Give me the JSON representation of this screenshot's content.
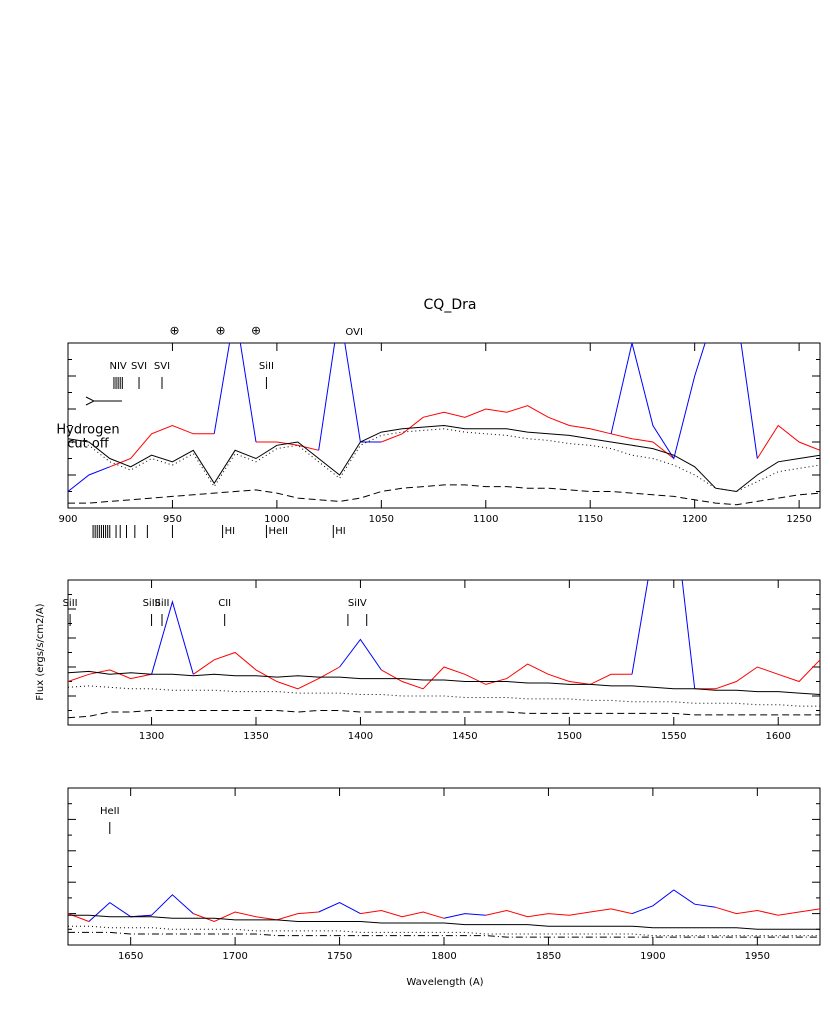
{
  "chart_data": [
    {
      "type": "line",
      "title": "CQ_Dra",
      "xlim": [
        900,
        1260
      ],
      "ylim": [
        0,
        10
      ],
      "xticks": [
        900,
        950,
        1000,
        1050,
        1100,
        1150,
        1200,
        1250
      ],
      "x": [
        900,
        910,
        920,
        930,
        940,
        950,
        960,
        970,
        980,
        990,
        1000,
        1010,
        1020,
        1030,
        1040,
        1050,
        1060,
        1070,
        1080,
        1090,
        1100,
        1110,
        1120,
        1130,
        1140,
        1150,
        1160,
        1170,
        1180,
        1190,
        1200,
        1210,
        1220,
        1230,
        1240,
        1250,
        1260
      ],
      "series": [
        {
          "color": "#ff0000",
          "dash": "solid",
          "values": [
            null,
            null,
            2.5,
            3.0,
            4.5,
            5.0,
            4.5,
            4.5,
            null,
            4.0,
            4.0,
            3.8,
            3.5,
            null,
            null,
            4.0,
            4.5,
            5.5,
            5.8,
            5.5,
            6.0,
            5.8,
            6.2,
            5.5,
            5.0,
            4.8,
            4.5,
            4.2,
            4.0,
            3.0,
            null,
            null,
            null,
            3.0,
            5.0,
            4.0,
            3.5
          ]
        },
        {
          "color": "#0000ff",
          "dash": "solid",
          "values": [
            1.0,
            2.0,
            2.5,
            null,
            null,
            null,
            null,
            4.5,
            12,
            4.0,
            null,
            null,
            3.5,
            12,
            4.0,
            4.0,
            null,
            null,
            null,
            null,
            null,
            null,
            null,
            null,
            null,
            null,
            4.5,
            10,
            5.0,
            3.0,
            8,
            12,
            12,
            3.0,
            null,
            null,
            null
          ]
        },
        {
          "color": "#000000",
          "dash": "solid",
          "values": [
            4.2,
            4.0,
            3.0,
            2.5,
            3.2,
            2.8,
            3.5,
            1.5,
            3.5,
            3.0,
            3.8,
            4.0,
            3.0,
            2.0,
            4.0,
            4.6,
            4.8,
            4.9,
            5.0,
            4.8,
            4.8,
            4.8,
            4.6,
            4.5,
            4.4,
            4.2,
            4.0,
            3.8,
            3.6,
            3.2,
            2.5,
            1.2,
            1.0,
            2.0,
            2.8,
            3.0,
            3.2
          ]
        },
        {
          "color": "#000000",
          "dash": "dotted",
          "values": [
            4.0,
            3.8,
            2.8,
            2.3,
            3.0,
            2.6,
            3.3,
            1.3,
            3.3,
            2.8,
            3.6,
            3.8,
            2.8,
            1.8,
            3.8,
            4.4,
            4.6,
            4.7,
            4.8,
            4.6,
            4.5,
            4.4,
            4.2,
            4.1,
            3.9,
            3.8,
            3.6,
            3.2,
            3.0,
            2.6,
            2.0,
            1.2,
            1.0,
            1.6,
            2.2,
            2.4,
            2.6
          ]
        },
        {
          "color": "#000000",
          "dash": "dashed",
          "values": [
            0.3,
            0.3,
            0.4,
            0.5,
            0.6,
            0.7,
            0.8,
            0.9,
            1.0,
            1.1,
            0.9,
            0.6,
            0.5,
            0.4,
            0.6,
            1.0,
            1.2,
            1.3,
            1.4,
            1.4,
            1.3,
            1.3,
            1.2,
            1.2,
            1.1,
            1.0,
            1.0,
            0.9,
            0.8,
            0.7,
            0.5,
            0.3,
            0.2,
            0.4,
            0.6,
            0.8,
            0.9
          ]
        }
      ],
      "telluric": {
        "symbol": "⊕",
        "x": [
          951,
          973,
          990
        ]
      },
      "top_labels": [
        {
          "text": "OVI",
          "x": 1037
        }
      ],
      "annotations": [
        {
          "text": "NIV",
          "x": [
            922,
            923,
            924,
            925,
            926
          ]
        },
        {
          "text": "SVI",
          "x": [
            934
          ]
        },
        {
          "text": "SVI",
          "x": [
            945
          ]
        },
        {
          "text": "SiII",
          "x": [
            995
          ]
        }
      ],
      "lower_ticks": [
        912,
        913,
        914,
        915,
        916,
        917,
        918,
        919,
        920,
        923,
        925,
        928,
        932,
        938,
        950
      ],
      "lower_labels": [
        {
          "text": "HI",
          "x": 974
        },
        {
          "text": "HeII",
          "x": 995
        },
        {
          "text": "HI",
          "x": 1027
        }
      ],
      "cutoff_text": [
        "Hydrogen",
        "cut off"
      ]
    },
    {
      "type": "line",
      "ylabel": "Flux (ergs/s/cm2/A)",
      "xlim": [
        1260,
        1620
      ],
      "ylim": [
        0,
        10
      ],
      "xticks": [
        1300,
        1350,
        1400,
        1450,
        1500,
        1550,
        1600
      ],
      "x": [
        1260,
        1270,
        1280,
        1290,
        1300,
        1310,
        1320,
        1330,
        1340,
        1350,
        1360,
        1370,
        1380,
        1390,
        1400,
        1410,
        1420,
        1430,
        1440,
        1450,
        1460,
        1470,
        1480,
        1490,
        1500,
        1510,
        1520,
        1530,
        1540,
        1550,
        1560,
        1570,
        1580,
        1590,
        1600,
        1610,
        1620
      ],
      "series": [
        {
          "color": "#ff0000",
          "dash": "solid",
          "values": [
            3.0,
            3.5,
            3.8,
            3.2,
            3.5,
            null,
            3.5,
            4.5,
            5.0,
            3.8,
            3.0,
            2.5,
            3.2,
            4.0,
            null,
            3.8,
            3.0,
            2.5,
            4.0,
            3.5,
            2.8,
            3.2,
            4.2,
            3.5,
            3.0,
            2.8,
            3.5,
            3.5,
            null,
            null,
            2.5,
            2.5,
            3.0,
            4.0,
            3.5,
            3.0,
            4.5
          ]
        },
        {
          "color": "#0000ff",
          "dash": "solid",
          "values": [
            null,
            null,
            null,
            null,
            3.5,
            8.5,
            3.5,
            null,
            null,
            null,
            null,
            null,
            null,
            4.0,
            5.9,
            3.8,
            null,
            null,
            null,
            null,
            null,
            null,
            null,
            null,
            null,
            null,
            null,
            3.5,
            12,
            15,
            2.5,
            null,
            null,
            null,
            null,
            null,
            null
          ]
        },
        {
          "color": "#000000",
          "dash": "solid",
          "values": [
            3.6,
            3.7,
            3.5,
            3.6,
            3.5,
            3.5,
            3.4,
            3.5,
            3.4,
            3.4,
            3.3,
            3.4,
            3.3,
            3.3,
            3.2,
            3.2,
            3.2,
            3.1,
            3.1,
            3.0,
            3.0,
            3.0,
            2.9,
            2.9,
            2.8,
            2.8,
            2.7,
            2.7,
            2.6,
            2.5,
            2.5,
            2.4,
            2.4,
            2.3,
            2.3,
            2.2,
            2.1
          ]
        },
        {
          "color": "#000000",
          "dash": "dotted",
          "values": [
            2.6,
            2.7,
            2.6,
            2.5,
            2.5,
            2.4,
            2.4,
            2.4,
            2.3,
            2.3,
            2.3,
            2.2,
            2.2,
            2.2,
            2.1,
            2.1,
            2.0,
            2.0,
            2.0,
            1.9,
            1.9,
            1.9,
            1.8,
            1.8,
            1.8,
            1.7,
            1.7,
            1.6,
            1.6,
            1.6,
            1.5,
            1.5,
            1.5,
            1.4,
            1.4,
            1.3,
            1.3
          ]
        },
        {
          "color": "#000000",
          "dash": "dashed",
          "values": [
            0.5,
            0.6,
            0.9,
            0.9,
            1.0,
            1.0,
            1.0,
            1.0,
            1.0,
            1.0,
            1.0,
            0.9,
            1.0,
            1.0,
            0.9,
            0.9,
            0.9,
            0.9,
            0.9,
            0.9,
            0.9,
            0.9,
            0.8,
            0.8,
            0.8,
            0.8,
            0.8,
            0.8,
            0.8,
            0.8,
            0.7,
            0.7,
            0.7,
            0.7,
            0.7,
            0.7,
            0.7
          ]
        }
      ],
      "annotations": [
        {
          "text": "SiII",
          "x": [
            1261
          ]
        },
        {
          "text": "SiIII",
          "x": [
            1300
          ]
        },
        {
          "text": "SiII",
          "x": [
            1305
          ]
        },
        {
          "text": "CII",
          "x": [
            1335
          ]
        },
        {
          "text": "SiIV",
          "x": [
            1394,
            1403
          ]
        }
      ]
    },
    {
      "type": "line",
      "xlabel": "Wavelength (A)",
      "xlim": [
        1620,
        1980
      ],
      "ylim": [
        0,
        10
      ],
      "xticks": [
        1650,
        1700,
        1750,
        1800,
        1850,
        1900,
        1950
      ],
      "x": [
        1620,
        1630,
        1640,
        1650,
        1660,
        1670,
        1680,
        1690,
        1700,
        1710,
        1720,
        1730,
        1740,
        1750,
        1760,
        1770,
        1780,
        1790,
        1800,
        1810,
        1820,
        1830,
        1840,
        1850,
        1860,
        1870,
        1880,
        1890,
        1900,
        1910,
        1920,
        1930,
        1940,
        1950,
        1960,
        1970,
        1980
      ],
      "series": [
        {
          "color": "#ff0000",
          "dash": "solid",
          "values": [
            2.0,
            1.5,
            null,
            1.8,
            1.9,
            null,
            2.0,
            1.5,
            2.1,
            1.8,
            1.6,
            2.0,
            2.1,
            null,
            2.0,
            2.2,
            1.8,
            2.1,
            1.7,
            null,
            1.9,
            2.2,
            1.8,
            2.0,
            1.9,
            2.1,
            2.3,
            2.0,
            null,
            null,
            null,
            2.4,
            2.0,
            2.2,
            1.9,
            2.1,
            2.3
          ]
        },
        {
          "color": "#0000ff",
          "dash": "solid",
          "values": [
            null,
            1.5,
            2.7,
            1.8,
            1.9,
            3.2,
            2.0,
            null,
            null,
            null,
            null,
            null,
            2.1,
            2.7,
            2.0,
            null,
            null,
            null,
            1.7,
            2.0,
            1.9,
            null,
            null,
            null,
            null,
            null,
            null,
            2.0,
            2.5,
            3.5,
            2.6,
            2.4,
            null,
            null,
            null,
            null,
            null
          ]
        },
        {
          "color": "#000000",
          "dash": "solid",
          "values": [
            1.9,
            1.9,
            1.8,
            1.8,
            1.8,
            1.7,
            1.7,
            1.7,
            1.6,
            1.6,
            1.6,
            1.5,
            1.5,
            1.5,
            1.5,
            1.4,
            1.4,
            1.4,
            1.4,
            1.3,
            1.3,
            1.3,
            1.3,
            1.2,
            1.2,
            1.2,
            1.2,
            1.2,
            1.1,
            1.1,
            1.1,
            1.1,
            1.1,
            1.0,
            1.0,
            1.0,
            1.0
          ]
        },
        {
          "color": "#000000",
          "dash": "dotted",
          "values": [
            1.2,
            1.2,
            1.1,
            1.1,
            1.1,
            1.0,
            1.0,
            1.0,
            1.0,
            0.9,
            0.9,
            0.9,
            0.9,
            0.9,
            0.8,
            0.8,
            0.8,
            0.8,
            0.8,
            0.8,
            0.7,
            0.7,
            0.7,
            0.7,
            0.7,
            0.7,
            0.7,
            0.7,
            0.6,
            0.6,
            0.6,
            0.6,
            0.6,
            0.6,
            0.6,
            0.6,
            0.6
          ]
        },
        {
          "color": "#000000",
          "dash": "dashdot",
          "values": [
            0.8,
            0.8,
            0.8,
            0.7,
            0.7,
            0.7,
            0.7,
            0.7,
            0.7,
            0.7,
            0.6,
            0.6,
            0.6,
            0.6,
            0.6,
            0.6,
            0.6,
            0.6,
            0.6,
            0.6,
            0.6,
            0.5,
            0.5,
            0.5,
            0.5,
            0.5,
            0.5,
            0.5,
            0.5,
            0.5,
            0.5,
            0.5,
            0.5,
            0.5,
            0.5,
            0.5,
            0.5
          ]
        }
      ],
      "annotations": [
        {
          "text": "HeII",
          "x": [
            1640
          ]
        }
      ]
    }
  ]
}
